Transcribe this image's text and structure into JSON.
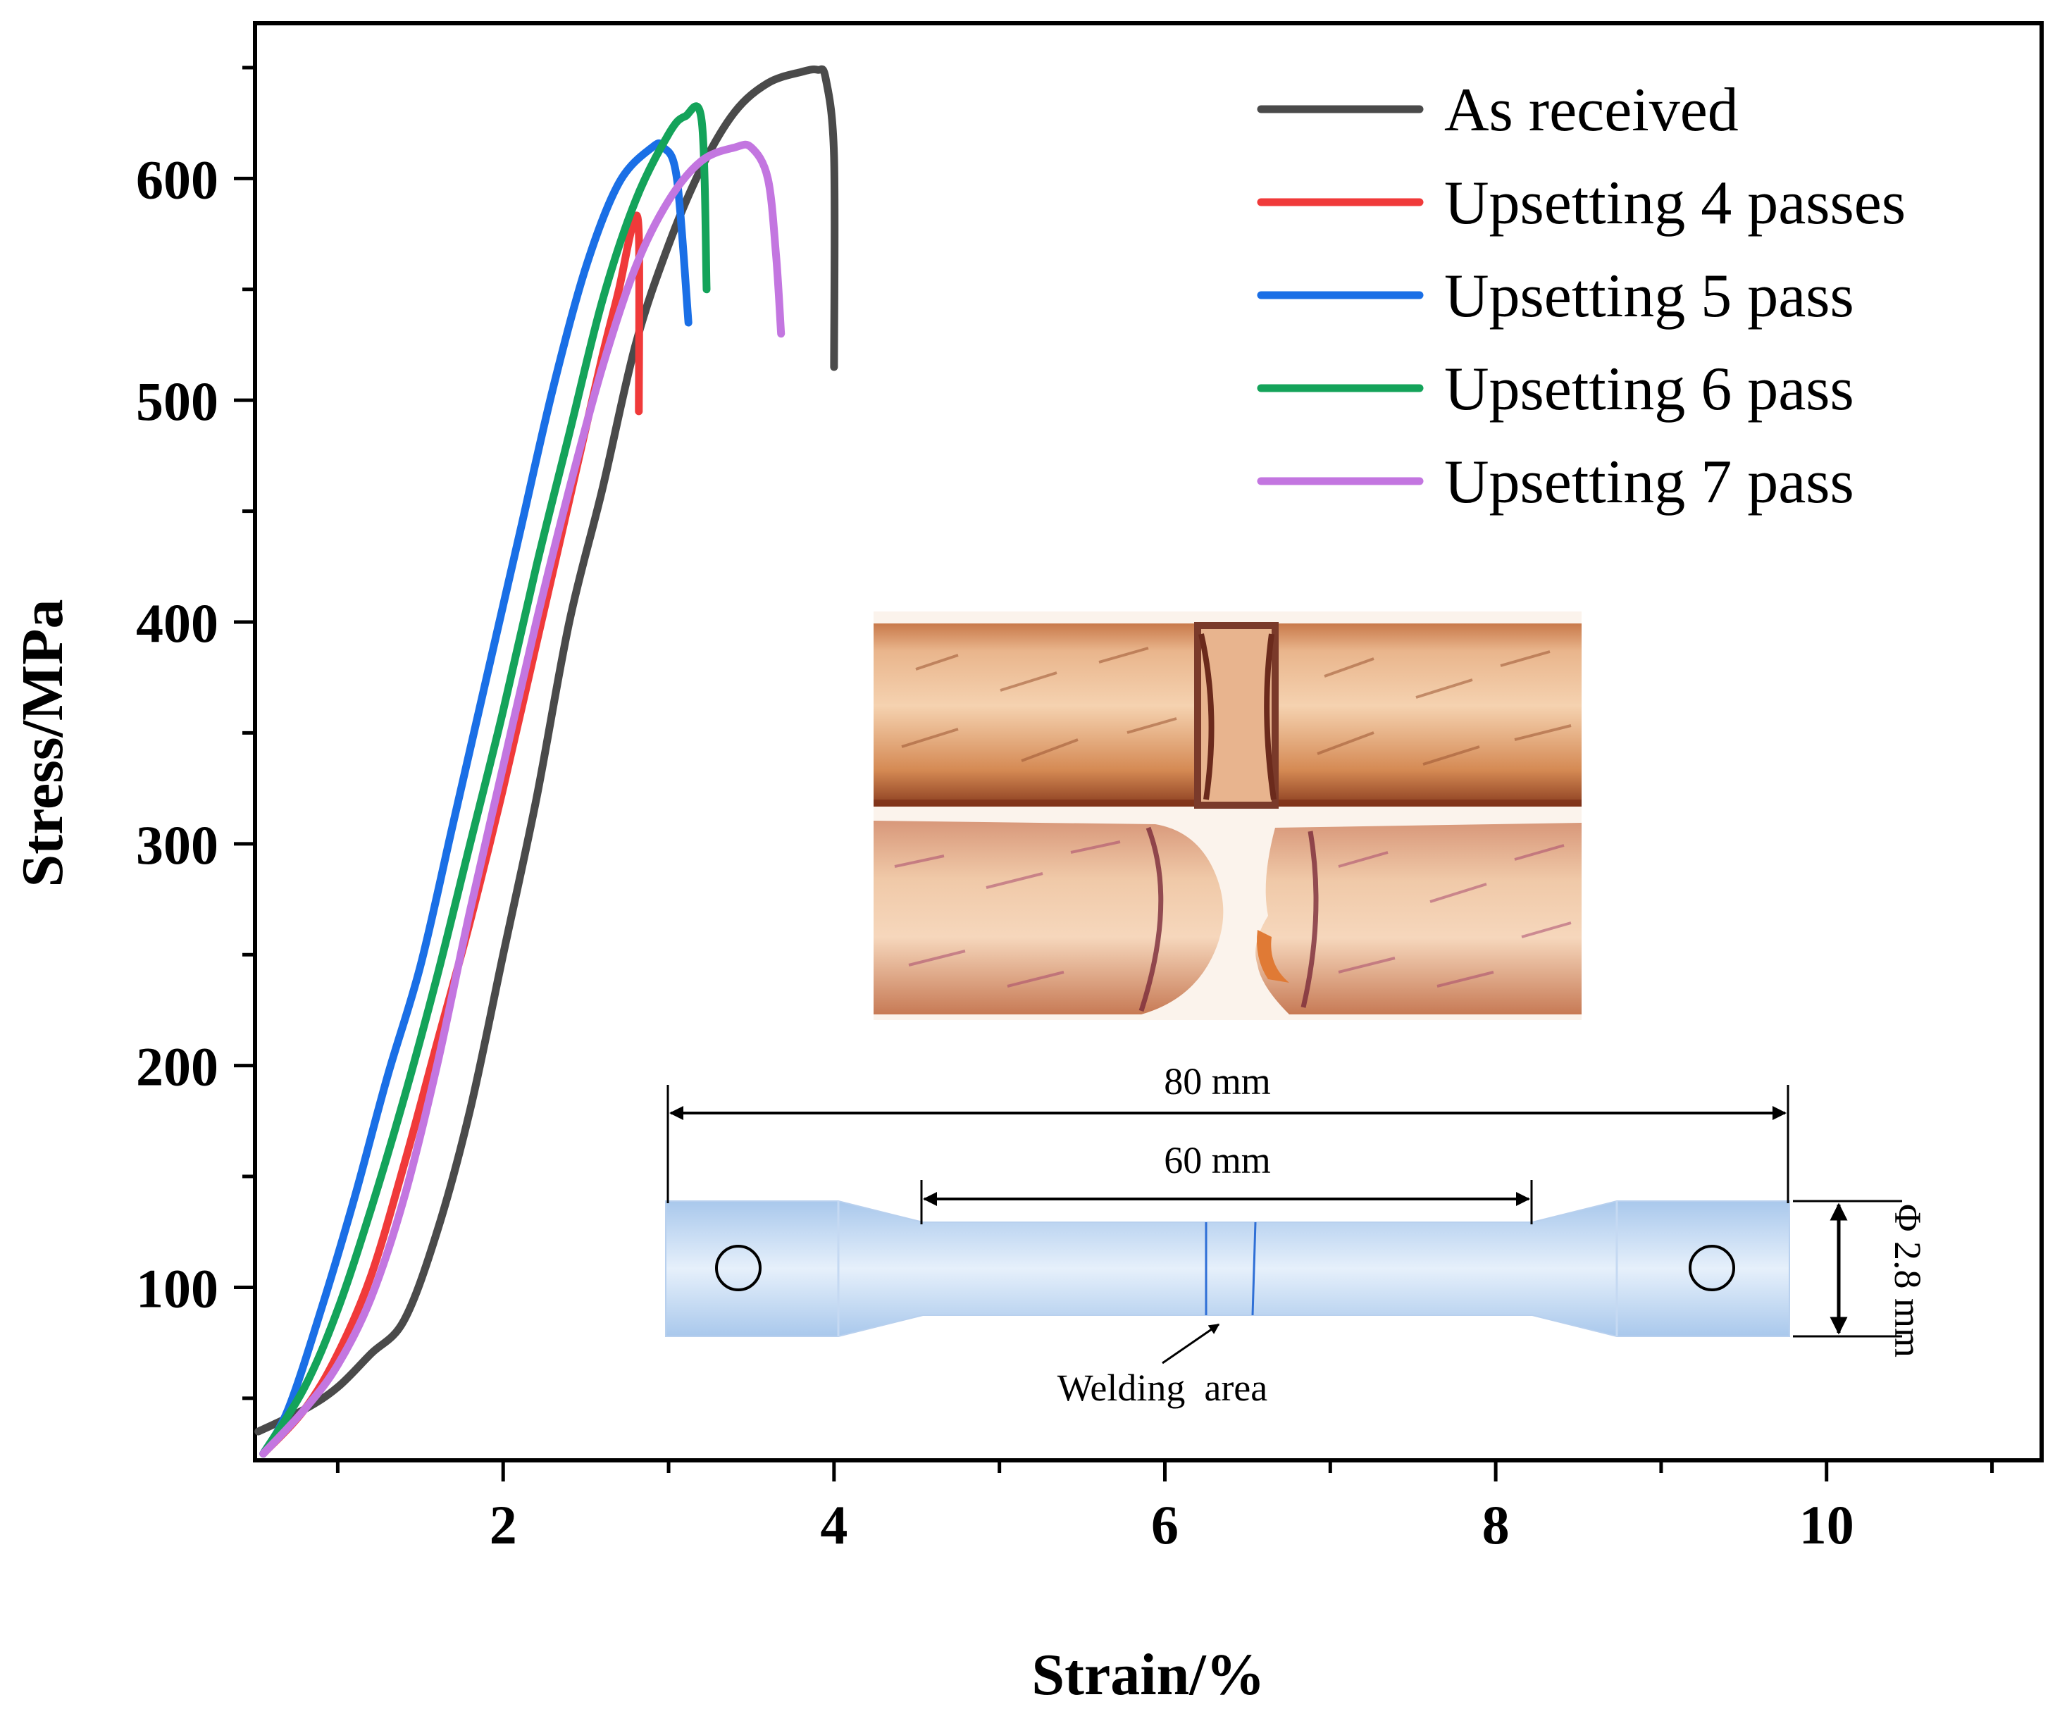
{
  "chart_data": {
    "type": "line",
    "xlabel": "Strain/%",
    "ylabel": "Stress/MPa",
    "xlim": [
      0.5,
      11.3
    ],
    "ylim": [
      22,
      670
    ],
    "x_ticks": [
      2,
      4,
      6,
      8,
      10
    ],
    "y_ticks": [
      100,
      200,
      300,
      400,
      500,
      600
    ],
    "x_tick_labels": [
      "2",
      "4",
      "6",
      "8",
      "10"
    ],
    "y_tick_labels": [
      "100",
      "200",
      "300",
      "400",
      "500",
      "600"
    ],
    "grid": false,
    "legend_position": "top-right",
    "series": [
      {
        "name": "As received",
        "color": "#4a4a4a",
        "points": [
          [
            0.52,
            35
          ],
          [
            0.8,
            45
          ],
          [
            1.0,
            55
          ],
          [
            1.2,
            70
          ],
          [
            1.4,
            85
          ],
          [
            1.6,
            125
          ],
          [
            1.8,
            180
          ],
          [
            2.0,
            250
          ],
          [
            2.2,
            320
          ],
          [
            2.4,
            400
          ],
          [
            2.6,
            460
          ],
          [
            2.8,
            525
          ],
          [
            3.0,
            570
          ],
          [
            3.2,
            605
          ],
          [
            3.4,
            630
          ],
          [
            3.6,
            643
          ],
          [
            3.8,
            648
          ],
          [
            3.9,
            649
          ],
          [
            3.95,
            645
          ],
          [
            4.0,
            610
          ],
          [
            4.0,
            515
          ]
        ]
      },
      {
        "name": "Upsetting 4 passes",
        "color": "#f03a3a",
        "points": [
          [
            0.55,
            25
          ],
          [
            0.8,
            45
          ],
          [
            1.0,
            70
          ],
          [
            1.2,
            105
          ],
          [
            1.4,
            155
          ],
          [
            1.6,
            210
          ],
          [
            1.8,
            265
          ],
          [
            2.0,
            325
          ],
          [
            2.2,
            390
          ],
          [
            2.4,
            455
          ],
          [
            2.6,
            520
          ],
          [
            2.7,
            550
          ],
          [
            2.78,
            578
          ],
          [
            2.82,
            575
          ],
          [
            2.82,
            495
          ]
        ]
      },
      {
        "name": "Upsetting 5 pass",
        "color": "#1a6fe6",
        "points": [
          [
            0.55,
            25
          ],
          [
            0.7,
            45
          ],
          [
            0.9,
            90
          ],
          [
            1.1,
            140
          ],
          [
            1.3,
            195
          ],
          [
            1.5,
            245
          ],
          [
            1.7,
            310
          ],
          [
            1.9,
            375
          ],
          [
            2.1,
            440
          ],
          [
            2.3,
            505
          ],
          [
            2.5,
            560
          ],
          [
            2.7,
            598
          ],
          [
            2.9,
            614
          ],
          [
            2.97,
            614
          ],
          [
            3.05,
            600
          ],
          [
            3.12,
            535
          ]
        ]
      },
      {
        "name": "Upsetting 6 pass",
        "color": "#14a35a",
        "points": [
          [
            0.55,
            25
          ],
          [
            0.8,
            55
          ],
          [
            1.0,
            90
          ],
          [
            1.2,
            135
          ],
          [
            1.4,
            185
          ],
          [
            1.6,
            240
          ],
          [
            1.8,
            300
          ],
          [
            2.0,
            360
          ],
          [
            2.2,
            425
          ],
          [
            2.4,
            485
          ],
          [
            2.6,
            545
          ],
          [
            2.8,
            590
          ],
          [
            3.0,
            620
          ],
          [
            3.1,
            628
          ],
          [
            3.2,
            626
          ],
          [
            3.23,
            550
          ]
        ]
      },
      {
        "name": "Upsetting 7 pass",
        "color": "#c376e0",
        "points": [
          [
            0.55,
            25
          ],
          [
            0.8,
            45
          ],
          [
            1.0,
            65
          ],
          [
            1.2,
            95
          ],
          [
            1.4,
            140
          ],
          [
            1.6,
            200
          ],
          [
            1.8,
            270
          ],
          [
            2.0,
            335
          ],
          [
            2.2,
            400
          ],
          [
            2.4,
            460
          ],
          [
            2.6,
            515
          ],
          [
            2.8,
            560
          ],
          [
            3.0,
            590
          ],
          [
            3.2,
            608
          ],
          [
            3.4,
            614
          ],
          [
            3.5,
            614
          ],
          [
            3.6,
            600
          ],
          [
            3.65,
            565
          ],
          [
            3.68,
            530
          ]
        ]
      }
    ],
    "inset": {
      "total_length": "80 mm",
      "gauge_length": "60 mm",
      "diameter": "Φ 2.8 mm",
      "welding_label": "Welding  area"
    }
  }
}
